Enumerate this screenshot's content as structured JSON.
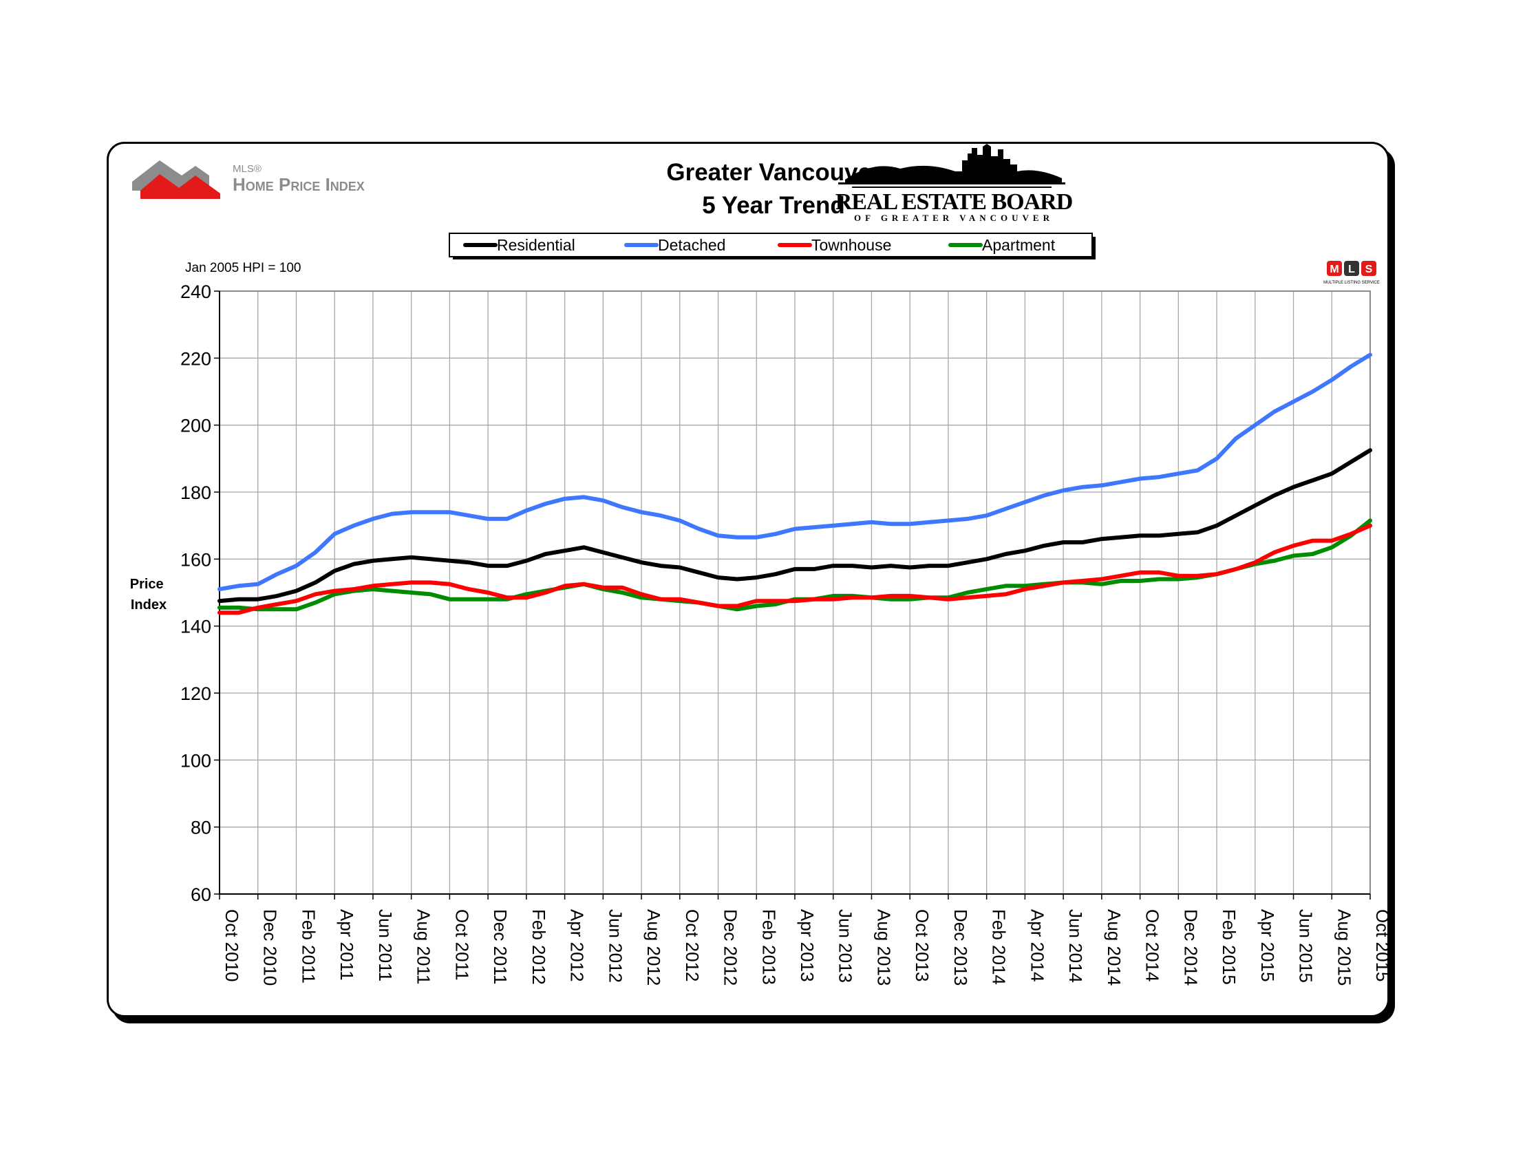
{
  "header": {
    "title_line1": "Greater Vancouver",
    "title_line2": "5 Year Trend",
    "mls_logo_small": "MLS®",
    "mls_logo_main": "Home Price Index",
    "board_logo_main": "REAL ESTATE BOARD",
    "board_logo_sub": "OF GREATER VANCOUVER",
    "mls_badge_letters": [
      "M",
      "L",
      "S"
    ],
    "mls_badge_caption": "MULTIPLE LISTING SERVICE"
  },
  "chart_data": {
    "type": "line",
    "title": "Greater Vancouver 5 Year Trend",
    "note": "Jan 2005 HPI = 100",
    "ylabel": "Price Index",
    "ylim": [
      60,
      240
    ],
    "yticks": [
      60,
      80,
      100,
      120,
      140,
      160,
      180,
      200,
      220,
      240
    ],
    "grid": true,
    "legend_position": "top-center",
    "x": [
      "Oct 2010",
      "Nov 2010",
      "Dec 2010",
      "Jan 2011",
      "Feb 2011",
      "Mar 2011",
      "Apr 2011",
      "May 2011",
      "Jun 2011",
      "Jul 2011",
      "Aug 2011",
      "Sep 2011",
      "Oct 2011",
      "Nov 2011",
      "Dec 2011",
      "Jan 2012",
      "Feb 2012",
      "Mar 2012",
      "Apr 2012",
      "May 2012",
      "Jun 2012",
      "Jul 2012",
      "Aug 2012",
      "Sep 2012",
      "Oct 2012",
      "Nov 2012",
      "Dec 2012",
      "Jan 2013",
      "Feb 2013",
      "Mar 2013",
      "Apr 2013",
      "May 2013",
      "Jun 2013",
      "Jul 2013",
      "Aug 2013",
      "Sep 2013",
      "Oct 2013",
      "Nov 2013",
      "Dec 2013",
      "Jan 2014",
      "Feb 2014",
      "Mar 2014",
      "Apr 2014",
      "May 2014",
      "Jun 2014",
      "Jul 2014",
      "Aug 2014",
      "Sep 2014",
      "Oct 2014",
      "Nov 2014",
      "Dec 2014",
      "Jan 2015",
      "Feb 2015",
      "Mar 2015",
      "Apr 2015",
      "May 2015",
      "Jun 2015",
      "Jul 2015",
      "Aug 2015",
      "Sep 2015",
      "Oct 2015"
    ],
    "xtick_labels": [
      "Oct 2010",
      "Dec 2010",
      "Feb 2011",
      "Apr 2011",
      "Jun 2011",
      "Aug 2011",
      "Oct 2011",
      "Dec 2011",
      "Feb 2012",
      "Apr 2012",
      "Jun 2012",
      "Aug 2012",
      "Oct 2012",
      "Dec 2012",
      "Feb 2013",
      "Apr 2013",
      "Jun 2013",
      "Aug 2013",
      "Oct 2013",
      "Dec 2013",
      "Feb 2014",
      "Apr 2014",
      "Jun 2014",
      "Aug 2014",
      "Oct 2014",
      "Dec 2014",
      "Feb 2015",
      "Apr 2015",
      "Jun 2015",
      "Aug 2015",
      "Oct 2015"
    ],
    "series": [
      {
        "name": "Residential",
        "color": "#000000",
        "values": [
          147.5,
          148,
          148,
          149,
          150.5,
          153,
          156.5,
          158.5,
          159.5,
          160,
          160.5,
          160,
          159.5,
          159,
          158,
          158,
          159.5,
          161.5,
          162.5,
          163.5,
          162,
          160.5,
          159,
          158,
          157.5,
          156,
          154.5,
          154,
          154.5,
          155.5,
          157,
          157,
          158,
          158,
          157.5,
          158,
          157.5,
          158,
          158,
          159,
          160,
          161.5,
          162.5,
          164,
          165,
          165,
          166,
          166.5,
          167,
          167,
          167.5,
          168,
          170,
          173,
          176,
          179,
          181.5,
          183.5,
          185.5,
          189,
          192.5
        ]
      },
      {
        "name": "Detached",
        "color": "#3f78ff",
        "values": [
          151,
          152,
          152.5,
          155.5,
          158,
          162,
          167.5,
          170,
          172,
          173.5,
          174,
          174,
          174,
          173,
          172,
          172,
          174.5,
          176.5,
          178,
          178.5,
          177.5,
          175.5,
          174,
          173,
          171.5,
          169,
          167,
          166.5,
          166.5,
          167.5,
          169,
          169.5,
          170,
          170.5,
          171,
          170.5,
          170.5,
          171,
          171.5,
          172,
          173,
          175,
          177,
          179,
          180.5,
          181.5,
          182,
          183,
          184,
          184.5,
          185.5,
          186.5,
          190,
          196,
          200,
          204,
          207,
          210,
          213.5,
          217.5,
          221
        ]
      },
      {
        "name": "Townhouse",
        "color": "#ff0000",
        "values": [
          144,
          144,
          145.5,
          146.5,
          147.5,
          149.5,
          150.5,
          151,
          152,
          152.5,
          153,
          153,
          152.5,
          151,
          150,
          148.5,
          148.5,
          150,
          152,
          152.5,
          151.5,
          151.5,
          149.5,
          148,
          148,
          147,
          146,
          146,
          147.5,
          147.5,
          147.5,
          148,
          148,
          148.5,
          148.5,
          149,
          149,
          148.5,
          148,
          148.5,
          149,
          149.5,
          151,
          152,
          153,
          153.5,
          154,
          155,
          156,
          156,
          155,
          155,
          155.5,
          157,
          159,
          162,
          164,
          165.5,
          165.5,
          167.5,
          170
        ]
      },
      {
        "name": "Apartment",
        "color": "#008c00",
        "values": [
          145.5,
          145.5,
          145,
          145,
          145,
          147,
          149.5,
          150.5,
          151,
          150.5,
          150,
          149.5,
          148,
          148,
          148,
          148,
          149.5,
          150.5,
          151.5,
          152.5,
          151,
          150,
          148.5,
          148,
          147.5,
          147,
          146,
          145,
          146,
          146.5,
          148,
          148,
          149,
          149,
          148.5,
          148,
          148,
          148.5,
          148.5,
          150,
          151,
          152,
          152,
          152.5,
          153,
          153,
          152.5,
          153.5,
          153.5,
          154,
          154,
          154.5,
          155.5,
          157,
          158.5,
          159.5,
          161,
          161.5,
          163.5,
          167,
          171.5
        ]
      }
    ]
  }
}
